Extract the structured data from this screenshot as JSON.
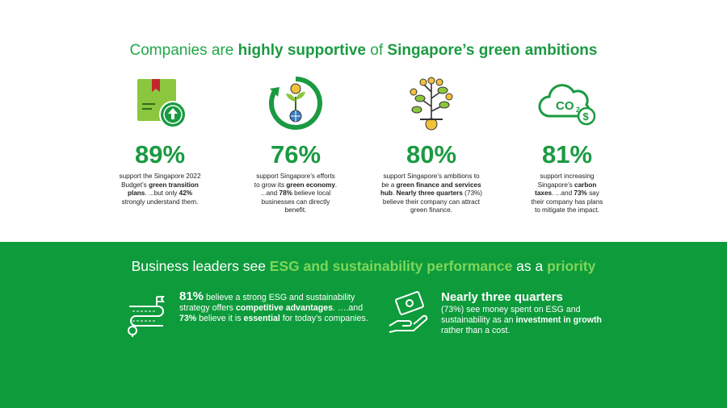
{
  "title": {
    "part1": "Companies are ",
    "part2": "highly supportive",
    "part3": " of ",
    "part4": "Singapore’s green ambitions"
  },
  "stats": [
    {
      "pct": "89%",
      "icon": "box-upload-icon",
      "t1": "support the Singapore 2022 Budget’s ",
      "b1": "green transition plans",
      "t2": ". ...but only ",
      "b2": "42%",
      "t3": " strongly understand them."
    },
    {
      "pct": "76%",
      "icon": "globe-plant-cycle-icon",
      "t1": "support Singapore’s efforts to grow its ",
      "b1": "green economy",
      "t2": ". ...and ",
      "b2": "78%",
      "t3": " believe local businesses can directly benefit."
    },
    {
      "pct": "80%",
      "icon": "money-tree-icon",
      "t1": "support Singapore’s ambitions to be a ",
      "b1": "green finance and services hub",
      "t2": ". ",
      "b2": "Nearly three quarters",
      "t3": " (73%) believe their company can attract green finance."
    },
    {
      "pct": "81%",
      "icon": "co2-cloud-icon",
      "t1": "support increasing Singapore’s ",
      "b1": "carbon taxes",
      "t2": ". ...and ",
      "b2": "73%",
      "t3": " say their company has plans to mitigate the impact."
    }
  ],
  "band": {
    "t1": "Business leaders see ",
    "hl1": "ESG and sustainability performance",
    "t2": " as a ",
    "hl2": "priority"
  },
  "feature1": {
    "icon": "roadmap-icon",
    "big": "81%",
    "t1": " believe a strong ESG and sustainability strategy offers ",
    "b1": "competitive advantages",
    "t2": ". ….and ",
    "b2": "73%",
    "t3": " believe it is ",
    "b3": "essential",
    "t4": " for today’s companies."
  },
  "feature2": {
    "icon": "hand-money-icon",
    "big": "Nearly three quarters",
    "t1": "(73%) see money spent on ESG and sustainability as an ",
    "b1": "investment in growth",
    "t2": " rather than a cost."
  },
  "colors": {
    "green": "#1b9a42",
    "band": "#0d9b3b",
    "highlight": "#7fd65a"
  }
}
